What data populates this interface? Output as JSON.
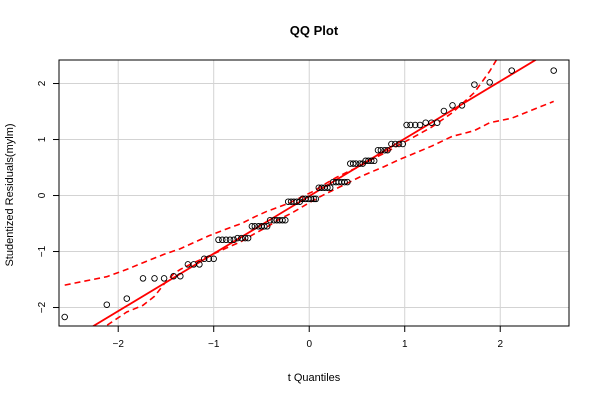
{
  "chart_data": {
    "type": "scatter",
    "title": "QQ Plot",
    "xlabel": "t Quantiles",
    "ylabel": "Studentized Residuals(mylm)",
    "xlim": [
      -2.62,
      2.72
    ],
    "ylim": [
      -2.33,
      2.42
    ],
    "x_ticks": [
      -2,
      -1,
      0,
      1,
      2
    ],
    "y_ticks": [
      -2,
      -1,
      0,
      1,
      2
    ],
    "grid": true,
    "colors": {
      "points": "#000000",
      "reference_line": "#ff0000",
      "envelope": "#ff0000",
      "grid": "#d3d3d3"
    },
    "points": [
      [
        -2.56,
        -2.17
      ],
      [
        -2.12,
        -1.95
      ],
      [
        -1.91,
        -1.84
      ],
      [
        -1.74,
        -1.48
      ],
      [
        -1.62,
        -1.48
      ],
      [
        -1.52,
        -1.48
      ],
      [
        -1.42,
        -1.44
      ],
      [
        -1.35,
        -1.44
      ],
      [
        -1.27,
        -1.23
      ],
      [
        -1.21,
        -1.23
      ],
      [
        -1.15,
        -1.23
      ],
      [
        -1.1,
        -1.13
      ],
      [
        -1.05,
        -1.13
      ],
      [
        -1.0,
        -1.13
      ],
      [
        -0.95,
        -0.79
      ],
      [
        -0.91,
        -0.79
      ],
      [
        -0.87,
        -0.79
      ],
      [
        -0.83,
        -0.79
      ],
      [
        -0.79,
        -0.79
      ],
      [
        -0.75,
        -0.76
      ],
      [
        -0.71,
        -0.76
      ],
      [
        -0.67,
        -0.76
      ],
      [
        -0.64,
        -0.76
      ],
      [
        -0.6,
        -0.55
      ],
      [
        -0.57,
        -0.55
      ],
      [
        -0.53,
        -0.55
      ],
      [
        -0.5,
        -0.55
      ],
      [
        -0.47,
        -0.55
      ],
      [
        -0.44,
        -0.55
      ],
      [
        -0.41,
        -0.44
      ],
      [
        -0.37,
        -0.44
      ],
      [
        -0.34,
        -0.44
      ],
      [
        -0.31,
        -0.44
      ],
      [
        -0.28,
        -0.44
      ],
      [
        -0.25,
        -0.44
      ],
      [
        -0.22,
        -0.11
      ],
      [
        -0.19,
        -0.11
      ],
      [
        -0.16,
        -0.11
      ],
      [
        -0.13,
        -0.11
      ],
      [
        -0.1,
        -0.11
      ],
      [
        -0.07,
        -0.06
      ],
      [
        -0.04,
        -0.06
      ],
      [
        -0.01,
        -0.06
      ],
      [
        0.02,
        -0.06
      ],
      [
        0.05,
        -0.06
      ],
      [
        0.07,
        -0.06
      ],
      [
        0.1,
        0.14
      ],
      [
        0.13,
        0.14
      ],
      [
        0.16,
        0.14
      ],
      [
        0.19,
        0.14
      ],
      [
        0.22,
        0.14
      ],
      [
        0.25,
        0.24
      ],
      [
        0.28,
        0.24
      ],
      [
        0.31,
        0.24
      ],
      [
        0.34,
        0.24
      ],
      [
        0.37,
        0.24
      ],
      [
        0.4,
        0.24
      ],
      [
        0.43,
        0.57
      ],
      [
        0.46,
        0.57
      ],
      [
        0.49,
        0.57
      ],
      [
        0.53,
        0.57
      ],
      [
        0.56,
        0.57
      ],
      [
        0.59,
        0.62
      ],
      [
        0.62,
        0.62
      ],
      [
        0.65,
        0.62
      ],
      [
        0.68,
        0.62
      ],
      [
        0.72,
        0.81
      ],
      [
        0.75,
        0.81
      ],
      [
        0.79,
        0.81
      ],
      [
        0.82,
        0.81
      ],
      [
        0.86,
        0.92
      ],
      [
        0.9,
        0.92
      ],
      [
        0.94,
        0.92
      ],
      [
        0.98,
        0.92
      ],
      [
        1.02,
        1.26
      ],
      [
        1.06,
        1.26
      ],
      [
        1.11,
        1.26
      ],
      [
        1.16,
        1.26
      ],
      [
        1.22,
        1.3
      ],
      [
        1.28,
        1.3
      ],
      [
        1.34,
        1.3
      ],
      [
        1.41,
        1.51
      ],
      [
        1.5,
        1.61
      ],
      [
        1.6,
        1.61
      ],
      [
        1.73,
        1.98
      ],
      [
        1.89,
        2.02
      ],
      [
        2.12,
        2.23
      ],
      [
        2.56,
        2.23
      ]
    ],
    "reference_line": [
      [
        -2.62,
        -2.7
      ],
      [
        2.72,
        2.78
      ]
    ],
    "upper_envelope": [
      [
        -2.56,
        -1.6
      ],
      [
        -2.12,
        -1.45
      ],
      [
        -1.91,
        -1.32
      ],
      [
        -1.74,
        -1.2
      ],
      [
        -1.52,
        -1.05
      ],
      [
        -1.35,
        -0.95
      ],
      [
        -1.21,
        -0.84
      ],
      [
        -1.05,
        -0.72
      ],
      [
        -0.87,
        -0.6
      ],
      [
        -0.71,
        -0.5
      ],
      [
        -0.57,
        -0.38
      ],
      [
        -0.44,
        -0.28
      ],
      [
        -0.31,
        -0.2
      ],
      [
        -0.19,
        -0.12
      ],
      [
        -0.07,
        -0.02
      ],
      [
        0.05,
        0.08
      ],
      [
        0.16,
        0.2
      ],
      [
        0.28,
        0.32
      ],
      [
        0.4,
        0.42
      ],
      [
        0.53,
        0.52
      ],
      [
        0.65,
        0.64
      ],
      [
        0.79,
        0.76
      ],
      [
        0.94,
        0.9
      ],
      [
        1.11,
        1.06
      ],
      [
        1.28,
        1.22
      ],
      [
        1.5,
        1.48
      ],
      [
        1.73,
        1.84
      ],
      [
        1.89,
        2.22
      ],
      [
        1.96,
        2.42
      ]
    ],
    "lower_envelope": [
      [
        -2.2,
        -2.42
      ],
      [
        -2.12,
        -2.32
      ],
      [
        -1.91,
        -2.08
      ],
      [
        -1.74,
        -1.96
      ],
      [
        -1.62,
        -1.8
      ],
      [
        -1.52,
        -1.58
      ],
      [
        -1.42,
        -1.4
      ],
      [
        -1.35,
        -1.32
      ],
      [
        -1.21,
        -1.2
      ],
      [
        -1.05,
        -1.08
      ],
      [
        -0.87,
        -0.94
      ],
      [
        -0.71,
        -0.82
      ],
      [
        -0.57,
        -0.68
      ],
      [
        -0.44,
        -0.56
      ],
      [
        -0.31,
        -0.42
      ],
      [
        -0.19,
        -0.32
      ],
      [
        -0.07,
        -0.2
      ],
      [
        0.05,
        -0.08
      ],
      [
        0.16,
        0.02
      ],
      [
        0.28,
        0.12
      ],
      [
        0.4,
        0.22
      ],
      [
        0.53,
        0.33
      ],
      [
        0.65,
        0.42
      ],
      [
        0.79,
        0.52
      ],
      [
        0.94,
        0.64
      ],
      [
        1.11,
        0.76
      ],
      [
        1.28,
        0.88
      ],
      [
        1.5,
        1.06
      ],
      [
        1.6,
        1.1
      ],
      [
        1.73,
        1.16
      ],
      [
        1.89,
        1.3
      ],
      [
        2.12,
        1.38
      ],
      [
        2.56,
        1.68
      ]
    ]
  }
}
